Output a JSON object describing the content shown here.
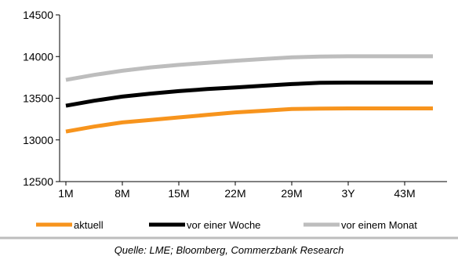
{
  "chart_data": {
    "type": "line",
    "categories": [
      "1M",
      "8M",
      "15M",
      "22M",
      "29M",
      "3Y",
      "43M"
    ],
    "ylim": [
      12500,
      14500
    ],
    "yticks": [
      12500,
      13000,
      13500,
      14000,
      14500
    ],
    "grid": false,
    "legend_position": "bottom",
    "series": [
      {
        "name": "aktuell",
        "color": "#f7941d",
        "x": [
          0,
          0.5,
          1,
          1.5,
          2,
          2.5,
          3,
          3.5,
          4,
          4.5,
          5,
          5.5,
          6,
          6.5
        ],
        "values": [
          13100,
          13160,
          13210,
          13240,
          13270,
          13300,
          13330,
          13350,
          13370,
          13375,
          13378,
          13378,
          13378,
          13378
        ]
      },
      {
        "name": "vor einer Woche",
        "color": "#000000",
        "x": [
          0,
          0.5,
          1,
          1.5,
          2,
          2.5,
          3,
          3.5,
          4,
          4.5,
          5,
          5.5,
          6,
          6.5
        ],
        "values": [
          13410,
          13470,
          13520,
          13555,
          13585,
          13610,
          13630,
          13650,
          13670,
          13685,
          13688,
          13688,
          13688,
          13688
        ]
      },
      {
        "name": "vor einem Monat",
        "color": "#bdbdbd",
        "x": [
          0,
          0.5,
          1,
          1.5,
          2,
          2.5,
          3,
          3.5,
          4,
          4.5,
          5,
          5.5,
          6,
          6.5
        ],
        "values": [
          13720,
          13780,
          13830,
          13870,
          13900,
          13925,
          13950,
          13970,
          13990,
          14000,
          14003,
          14003,
          14003,
          14003
        ]
      }
    ],
    "source": "Quelle: LME; Bloomberg, Commerzbank Research"
  },
  "colors": {
    "axis": "#000000",
    "divider": "#bdbdbd"
  }
}
